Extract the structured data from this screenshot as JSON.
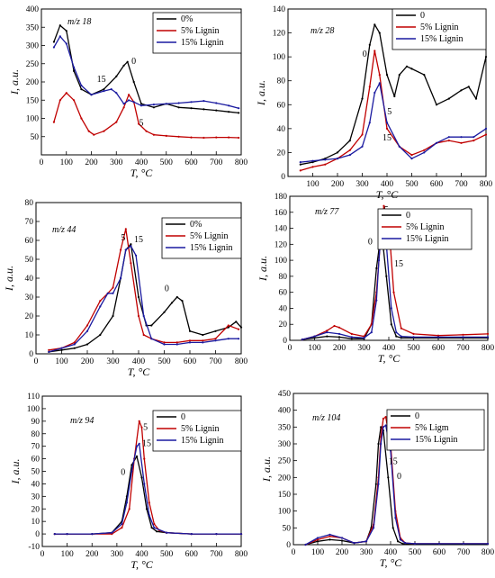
{
  "chart_data": [
    {
      "type": "line",
      "annotation": "m/z 18",
      "xlabel": "T, °C",
      "ylabel": "I, a.u.",
      "xlim": [
        0,
        800
      ],
      "ylim": [
        0,
        400
      ],
      "xticks": [
        0,
        100,
        200,
        300,
        400,
        500,
        600,
        700,
        800
      ],
      "yticks": [
        50,
        100,
        150,
        200,
        250,
        300,
        350,
        400
      ],
      "legend": "top-right",
      "series": [
        {
          "name": "0%",
          "color": "#000000",
          "x": [
            50,
            75,
            100,
            130,
            160,
            200,
            250,
            300,
            330,
            345,
            370,
            400,
            450,
            500,
            550,
            600,
            650,
            700,
            750,
            790
          ],
          "y": [
            310,
            355,
            340,
            230,
            180,
            165,
            180,
            215,
            245,
            255,
            200,
            140,
            130,
            140,
            130,
            128,
            125,
            122,
            118,
            115
          ]
        },
        {
          "name": "5% Lignin",
          "color": "#c00000",
          "x": [
            50,
            75,
            100,
            130,
            160,
            190,
            210,
            250,
            300,
            330,
            350,
            370,
            390,
            420,
            450,
            500,
            550,
            600,
            650,
            700,
            750,
            790
          ],
          "y": [
            90,
            150,
            170,
            150,
            100,
            65,
            55,
            65,
            90,
            130,
            165,
            145,
            85,
            65,
            55,
            52,
            50,
            48,
            47,
            48,
            48,
            47
          ]
        },
        {
          "name": "15% Lignin",
          "color": "#1a1aa0",
          "x": [
            50,
            75,
            100,
            130,
            160,
            200,
            250,
            280,
            300,
            330,
            350,
            370,
            400,
            450,
            500,
            550,
            600,
            650,
            700,
            750,
            790
          ],
          "y": [
            295,
            325,
            305,
            240,
            190,
            165,
            175,
            180,
            170,
            140,
            150,
            145,
            135,
            138,
            140,
            142,
            145,
            148,
            142,
            135,
            128
          ]
        }
      ],
      "labels": [
        {
          "text": "0",
          "x": 370,
          "y": 250
        },
        {
          "text": "15",
          "x": 240,
          "y": 200
        },
        {
          "text": "5",
          "x": 400,
          "y": 80
        }
      ]
    },
    {
      "type": "line",
      "annotation": "m/z 28",
      "xlabel": "T, °C",
      "ylabel": "I, a.u.",
      "xlim": [
        0,
        800
      ],
      "ylim": [
        0,
        140
      ],
      "xticks": [
        100,
        200,
        300,
        400,
        500,
        600,
        700,
        800
      ],
      "yticks": [
        0,
        20,
        40,
        60,
        80,
        100,
        120,
        140
      ],
      "legend": "top-right",
      "series": [
        {
          "name": "0",
          "color": "#000000",
          "x": [
            50,
            100,
            150,
            200,
            250,
            300,
            330,
            350,
            370,
            400,
            430,
            450,
            480,
            500,
            550,
            600,
            650,
            700,
            730,
            760,
            800
          ],
          "y": [
            10,
            12,
            15,
            20,
            30,
            65,
            110,
            127,
            120,
            85,
            67,
            85,
            92,
            90,
            85,
            60,
            65,
            72,
            75,
            65,
            100
          ]
        },
        {
          "name": "5% Lignin",
          "color": "#c00000",
          "x": [
            50,
            100,
            150,
            200,
            250,
            300,
            330,
            350,
            370,
            400,
            450,
            500,
            550,
            600,
            650,
            700,
            750,
            800
          ],
          "y": [
            5,
            8,
            10,
            15,
            22,
            35,
            75,
            105,
            85,
            40,
            25,
            18,
            22,
            28,
            30,
            28,
            30,
            35
          ]
        },
        {
          "name": "15% Lignin",
          "color": "#1a1aa0",
          "x": [
            50,
            100,
            150,
            200,
            250,
            300,
            330,
            350,
            370,
            400,
            450,
            500,
            550,
            600,
            650,
            700,
            750,
            800
          ],
          "y": [
            12,
            13,
            14,
            15,
            18,
            25,
            45,
            70,
            78,
            45,
            25,
            15,
            20,
            28,
            33,
            33,
            33,
            40
          ]
        }
      ],
      "labels": [
        {
          "text": "0",
          "x": 310,
          "y": 100
        },
        {
          "text": "5",
          "x": 410,
          "y": 52
        },
        {
          "text": "15",
          "x": 400,
          "y": 30
        }
      ]
    },
    {
      "type": "line",
      "annotation": "m/z 44",
      "xlabel": "T, °C",
      "ylabel": "I, a.u.",
      "xlim": [
        0,
        800
      ],
      "ylim": [
        0,
        80
      ],
      "xticks": [
        0,
        100,
        200,
        300,
        400,
        500,
        600,
        700,
        800
      ],
      "yticks": [
        0,
        10,
        20,
        30,
        40,
        50,
        60,
        70,
        80
      ],
      "legend": "top-right",
      "series": [
        {
          "name": "0%",
          "color": "#000000",
          "x": [
            50,
            100,
            150,
            200,
            250,
            300,
            330,
            350,
            370,
            400,
            430,
            450,
            500,
            530,
            550,
            570,
            600,
            650,
            700,
            750,
            780,
            800
          ],
          "y": [
            1,
            2,
            3,
            5,
            10,
            20,
            40,
            55,
            58,
            30,
            15,
            15,
            22,
            27,
            30,
            28,
            12,
            10,
            12,
            14,
            17,
            14
          ]
        },
        {
          "name": "5% Lignin",
          "color": "#c00000",
          "x": [
            50,
            100,
            150,
            200,
            250,
            280,
            300,
            330,
            350,
            370,
            400,
            420,
            450,
            500,
            550,
            600,
            650,
            700,
            750,
            790
          ],
          "y": [
            2,
            3,
            6,
            15,
            28,
            32,
            35,
            55,
            66,
            48,
            20,
            10,
            8,
            6,
            6,
            7,
            7,
            8,
            15,
            13
          ]
        },
        {
          "name": "15% Lignin",
          "color": "#1a1aa0",
          "x": [
            50,
            100,
            150,
            200,
            250,
            280,
            300,
            330,
            350,
            370,
            390,
            420,
            450,
            500,
            550,
            600,
            650,
            700,
            750,
            790
          ],
          "y": [
            1,
            3,
            5,
            12,
            25,
            32,
            32,
            40,
            55,
            57,
            52,
            20,
            8,
            5,
            5,
            6,
            6,
            7,
            8,
            8
          ]
        }
      ],
      "labels": [
        {
          "text": "5",
          "x": 340,
          "y": 60
        },
        {
          "text": "15",
          "x": 400,
          "y": 59
        },
        {
          "text": "0",
          "x": 510,
          "y": 33
        }
      ]
    },
    {
      "type": "line",
      "annotation": "m/z 77",
      "xlabel": "T, °C",
      "ylabel": "I, a.u.",
      "xlim": [
        0,
        800
      ],
      "ylim": [
        0,
        180
      ],
      "xticks": [
        0,
        100,
        200,
        300,
        400,
        500,
        600,
        700,
        800
      ],
      "yticks": [
        0,
        20,
        40,
        60,
        80,
        100,
        120,
        140,
        160,
        180
      ],
      "legend": "top-right",
      "series": [
        {
          "name": "0",
          "color": "#000000",
          "x": [
            50,
            100,
            150,
            200,
            250,
            300,
            330,
            350,
            370,
            390,
            410,
            430,
            450,
            500,
            600,
            700,
            800
          ],
          "y": [
            1,
            3,
            5,
            4,
            2,
            2,
            20,
            90,
            138,
            80,
            20,
            5,
            3,
            3,
            3,
            3,
            3
          ]
        },
        {
          "name": "5% Lignin",
          "color": "#c00000",
          "x": [
            50,
            100,
            150,
            180,
            200,
            250,
            300,
            330,
            350,
            370,
            380,
            400,
            420,
            450,
            500,
            600,
            700,
            800
          ],
          "y": [
            1,
            5,
            12,
            18,
            16,
            8,
            5,
            20,
            60,
            140,
            168,
            145,
            60,
            15,
            8,
            6,
            7,
            8
          ]
        },
        {
          "name": "15% Lignin",
          "color": "#1a1aa0",
          "x": [
            50,
            100,
            150,
            200,
            250,
            300,
            330,
            350,
            360,
            370,
            380,
            390,
            410,
            430,
            450,
            500,
            600,
            700,
            800
          ],
          "y": [
            1,
            5,
            10,
            8,
            4,
            3,
            10,
            50,
            100,
            140,
            142,
            120,
            40,
            10,
            5,
            4,
            4,
            4,
            4
          ]
        }
      ],
      "labels": [
        {
          "text": "0",
          "x": 325,
          "y": 120
        },
        {
          "text": "5",
          "x": 390,
          "y": 160
        },
        {
          "text": "15",
          "x": 440,
          "y": 92
        }
      ]
    },
    {
      "type": "line",
      "annotation": "m/z 94",
      "xlabel": "T, °C",
      "ylabel": "I, a.u.",
      "xlim": [
        0,
        800
      ],
      "ylim": [
        -10,
        110
      ],
      "xticks": [
        0,
        100,
        200,
        300,
        400,
        500,
        600,
        700,
        800
      ],
      "yticks": [
        -10,
        0,
        10,
        20,
        30,
        40,
        50,
        60,
        70,
        80,
        90,
        100,
        110
      ],
      "legend": "top-right",
      "series": [
        {
          "name": "0",
          "color": "#000000",
          "x": [
            50,
            100,
            200,
            280,
            320,
            340,
            360,
            380,
            400,
            420,
            440,
            460,
            500,
            600,
            700,
            800
          ],
          "y": [
            0,
            0,
            0,
            1,
            10,
            30,
            55,
            62,
            45,
            20,
            5,
            2,
            1,
            0,
            0,
            0
          ]
        },
        {
          "name": "5% Lignin",
          "color": "#c00000",
          "x": [
            50,
            100,
            200,
            280,
            320,
            350,
            370,
            390,
            400,
            410,
            430,
            450,
            470,
            500,
            600,
            700,
            800
          ],
          "y": [
            0,
            0,
            0,
            0,
            5,
            20,
            60,
            90,
            85,
            60,
            25,
            8,
            3,
            1,
            0,
            0,
            0
          ]
        },
        {
          "name": "15% Lignin",
          "color": "#1a1aa0",
          "x": [
            50,
            100,
            200,
            280,
            320,
            340,
            360,
            380,
            390,
            410,
            430,
            450,
            500,
            600,
            700,
            800
          ],
          "y": [
            0,
            0,
            0,
            1,
            8,
            25,
            50,
            70,
            72,
            40,
            15,
            5,
            1,
            0,
            0,
            0
          ]
        }
      ],
      "labels": [
        {
          "text": "0",
          "x": 325,
          "y": 47
        },
        {
          "text": "5",
          "x": 415,
          "y": 83
        },
        {
          "text": "15",
          "x": 420,
          "y": 70
        }
      ]
    },
    {
      "type": "line",
      "annotation": "m/z 104",
      "xlabel": "T, °C",
      "ylabel": "I, a.u.",
      "xlim": [
        0,
        800
      ],
      "ylim": [
        0,
        450
      ],
      "xticks": [
        0,
        100,
        200,
        300,
        400,
        500,
        600,
        700,
        800
      ],
      "yticks": [
        0,
        50,
        100,
        150,
        200,
        250,
        300,
        350,
        400,
        450
      ],
      "legend": "top-right",
      "series": [
        {
          "name": "0",
          "color": "#000000",
          "x": [
            50,
            100,
            150,
            200,
            250,
            300,
            320,
            340,
            350,
            360,
            370,
            390,
            410,
            430,
            450,
            500,
            600,
            700,
            800
          ],
          "y": [
            0,
            10,
            15,
            12,
            5,
            10,
            50,
            180,
            300,
            350,
            340,
            200,
            50,
            10,
            3,
            2,
            2,
            2,
            2
          ]
        },
        {
          "name": "5% Ligm",
          "color": "#c00000",
          "x": [
            50,
            100,
            150,
            200,
            250,
            300,
            330,
            350,
            360,
            370,
            380,
            400,
            420,
            440,
            460,
            500,
            600,
            700,
            800
          ],
          "y": [
            0,
            15,
            25,
            20,
            5,
            10,
            60,
            200,
            320,
            375,
            380,
            300,
            100,
            20,
            5,
            3,
            3,
            3,
            3
          ]
        },
        {
          "name": "15% Lignin",
          "color": "#1a1aa0",
          "x": [
            50,
            100,
            150,
            200,
            250,
            300,
            330,
            350,
            360,
            370,
            380,
            400,
            420,
            440,
            460,
            500,
            600,
            700,
            800
          ],
          "y": [
            0,
            20,
            30,
            20,
            5,
            10,
            50,
            180,
            300,
            350,
            355,
            280,
            80,
            15,
            5,
            3,
            3,
            3,
            3
          ]
        }
      ],
      "labels": [
        {
          "text": "5",
          "x": 400,
          "y": 375
        },
        {
          "text": "15",
          "x": 410,
          "y": 240
        },
        {
          "text": "0",
          "x": 435,
          "y": 195
        }
      ]
    }
  ]
}
